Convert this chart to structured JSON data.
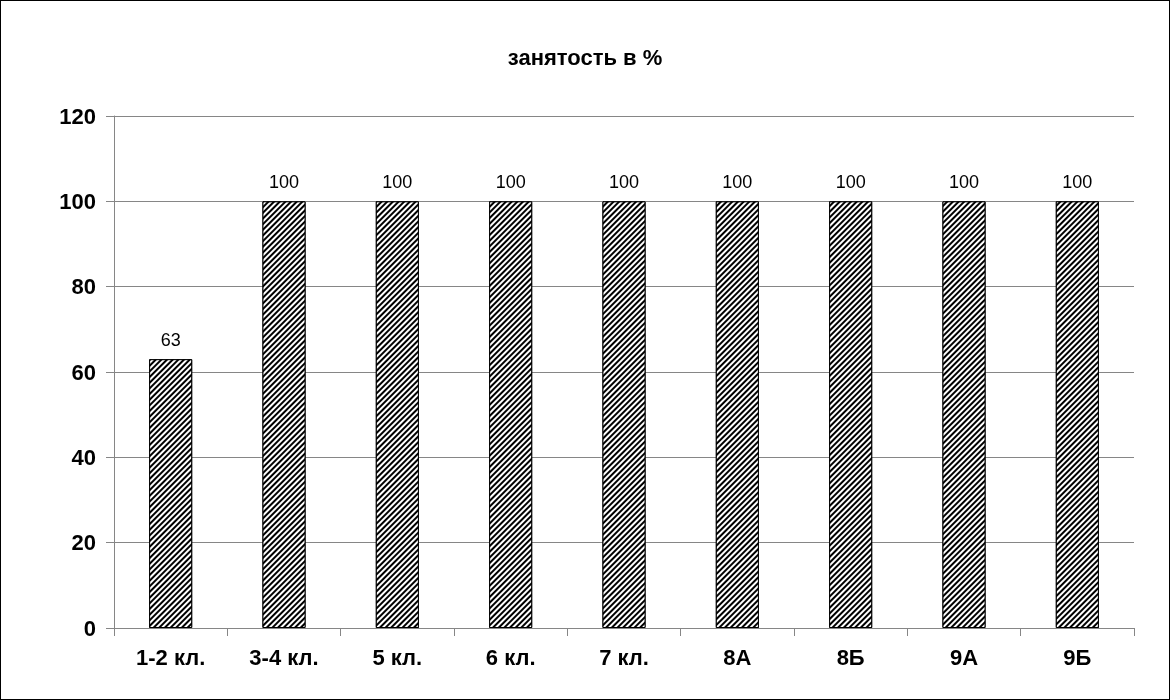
{
  "chart_data": {
    "type": "bar",
    "title": "занятость в %",
    "categories": [
      "1-2 кл.",
      "3-4 кл.",
      "5 кл.",
      "6 кл.",
      "7 кл.",
      "8А",
      "8Б",
      "9А",
      "9Б"
    ],
    "values": [
      63,
      100,
      100,
      100,
      100,
      100,
      100,
      100,
      100
    ],
    "color": "#000000",
    "ylim": [
      0,
      120
    ],
    "yticks": [
      0,
      20,
      40,
      60,
      80,
      100,
      120
    ],
    "grid": "y",
    "data_labels": true
  }
}
